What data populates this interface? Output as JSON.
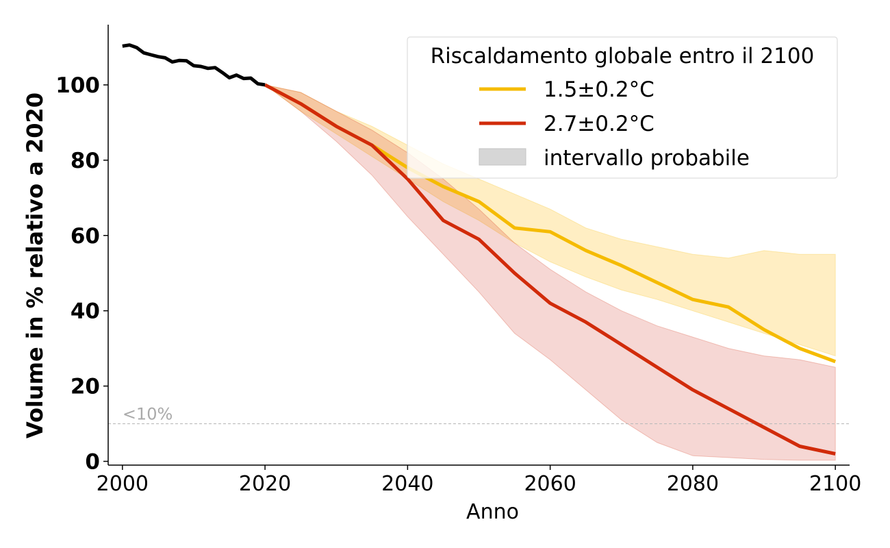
{
  "chart_data": {
    "type": "line",
    "xlabel": "Anno",
    "ylabel": "Volume in % relativo a 2020",
    "xlim": [
      1998,
      2102
    ],
    "ylim": [
      -1,
      116
    ],
    "xticks": [
      2000,
      2020,
      2040,
      2060,
      2080,
      2100
    ],
    "yticks": [
      0,
      20,
      40,
      60,
      80,
      100
    ],
    "grid": false,
    "legend": {
      "placement": "top-right",
      "title": "Riscaldamento globale entro il 2100",
      "range_label": "intervallo probabile"
    },
    "threshold": {
      "value": 10,
      "label": "<10%",
      "color": "#bbbbbb"
    },
    "historical": {
      "color": "#000000",
      "x": [
        2000,
        2001,
        2002,
        2003,
        2004,
        2005,
        2006,
        2007,
        2008,
        2009,
        2010,
        2011,
        2012,
        2013,
        2014,
        2015,
        2016,
        2017,
        2018,
        2019,
        2020
      ],
      "y": [
        110.3,
        110.6,
        109.9,
        108.5,
        108.0,
        107.5,
        107.2,
        106.1,
        106.5,
        106.4,
        105.1,
        104.9,
        104.4,
        104.6,
        103.3,
        101.9,
        102.6,
        101.7,
        101.8,
        100.3,
        100.0
      ]
    },
    "series": [
      {
        "name": "1.5±0.2°C",
        "color": "#f5bb00",
        "band_color": "#ffeec3",
        "x": [
          2020,
          2025,
          2030,
          2035,
          2040,
          2045,
          2050,
          2055,
          2060,
          2065,
          2070,
          2075,
          2080,
          2085,
          2090,
          2095,
          2100
        ],
        "y": [
          100,
          95,
          89,
          84,
          78,
          73,
          69,
          62,
          61,
          56,
          52,
          47.5,
          43,
          41,
          35,
          30,
          26.5
        ],
        "lower": [
          100,
          93,
          87,
          81,
          75,
          69,
          64,
          58,
          53,
          49,
          45.5,
          43,
          40,
          37,
          34,
          31,
          28
        ],
        "upper": [
          100,
          98,
          93,
          89,
          84,
          79,
          75,
          71,
          67,
          62,
          59,
          57,
          55,
          54,
          56,
          55,
          55
        ]
      },
      {
        "name": "2.7±0.2°C",
        "color": "#d12b0a",
        "band_color": "#f5d0cc",
        "x": [
          2020,
          2025,
          2030,
          2035,
          2040,
          2045,
          2050,
          2055,
          2060,
          2065,
          2070,
          2075,
          2080,
          2085,
          2090,
          2095,
          2100
        ],
        "y": [
          100,
          95,
          89,
          84,
          75,
          64,
          59,
          50,
          42,
          37,
          31,
          25,
          19,
          14,
          9,
          4,
          2
        ],
        "lower": [
          100,
          93,
          85,
          76,
          65,
          55,
          45,
          34,
          27,
          19,
          11,
          5,
          1.5,
          1,
          0.5,
          0.3,
          0.3
        ],
        "upper": [
          100,
          98,
          93,
          88,
          82,
          75,
          67,
          58,
          51,
          45,
          40,
          36,
          33,
          30,
          28,
          27,
          25
        ]
      }
    ]
  }
}
